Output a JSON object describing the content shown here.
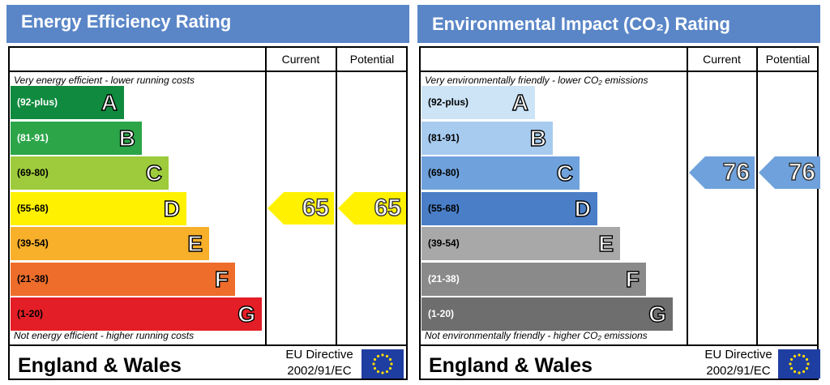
{
  "chart_data": [
    {
      "type": "table",
      "title": "Energy Efficiency Rating",
      "columns": [
        "Current",
        "Potential"
      ],
      "top_note": "Very energy efficient - lower running costs",
      "bottom_note": "Not energy efficient - higher running costs",
      "bands": [
        {
          "letter": "A",
          "range": "(92-plus)",
          "color": "#108a3e",
          "text_color": "#ffffff"
        },
        {
          "letter": "B",
          "range": "(81-91)",
          "color": "#2ca549",
          "text_color": "#ffffff"
        },
        {
          "letter": "C",
          "range": "(69-80)",
          "color": "#9dcb3b",
          "text_color": "#000000"
        },
        {
          "letter": "D",
          "range": "(55-68)",
          "color": "#fff100",
          "text_color": "#000000"
        },
        {
          "letter": "E",
          "range": "(39-54)",
          "color": "#f8af2a",
          "text_color": "#000000"
        },
        {
          "letter": "F",
          "range": "(21-38)",
          "color": "#ee6d2b",
          "text_color": "#000000"
        },
        {
          "letter": "G",
          "range": "(1-20)",
          "color": "#e41e26",
          "text_color": "#000000"
        }
      ],
      "current": {
        "value": "65",
        "band": "D",
        "color": "#fff100"
      },
      "potential": {
        "value": "65",
        "band": "D",
        "color": "#fff100"
      },
      "footer": {
        "region": "England & Wales",
        "directive_line1": "EU Directive",
        "directive_line2": "2002/91/EC"
      }
    },
    {
      "type": "table",
      "title": "Environmental Impact (CO₂) Rating",
      "columns": [
        "Current",
        "Potential"
      ],
      "top_note": "Very environmentally friendly - lower CO₂ emissions",
      "bottom_note": "Not environmentally friendly - higher CO₂ emissions",
      "bands": [
        {
          "letter": "A",
          "range": "(92-plus)",
          "color": "#cde4f7",
          "text_color": "#000000"
        },
        {
          "letter": "B",
          "range": "(81-91)",
          "color": "#a7cbef",
          "text_color": "#000000"
        },
        {
          "letter": "C",
          "range": "(69-80)",
          "color": "#6fa2dc",
          "text_color": "#000000"
        },
        {
          "letter": "D",
          "range": "(55-68)",
          "color": "#4a7fc8",
          "text_color": "#000000"
        },
        {
          "letter": "E",
          "range": "(39-54)",
          "color": "#a8a8a8",
          "text_color": "#000000"
        },
        {
          "letter": "F",
          "range": "(21-38)",
          "color": "#8a8a8a",
          "text_color": "#ffffff"
        },
        {
          "letter": "G",
          "range": "(1-20)",
          "color": "#6e6e6e",
          "text_color": "#ffffff"
        }
      ],
      "current": {
        "value": "76",
        "band": "C",
        "color": "#6fa2dc"
      },
      "potential": {
        "value": "76",
        "band": "C",
        "color": "#6fa2dc"
      },
      "footer": {
        "region": "England & Wales",
        "directive_line1": "EU Directive",
        "directive_line2": "2002/91/EC"
      }
    }
  ],
  "colors": {
    "title_bar": "#5a86c7",
    "eu_flag": "#1f3ea1",
    "eu_stars": "#ffdd00"
  }
}
